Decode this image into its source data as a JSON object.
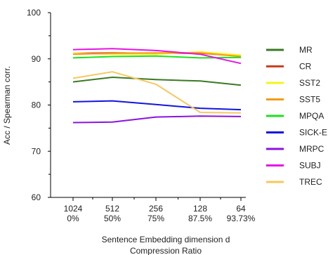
{
  "chart_data": {
    "type": "line",
    "x_labels": [
      [
        "1024",
        "0%"
      ],
      [
        "512",
        "50%"
      ],
      [
        "256",
        "75%"
      ],
      [
        "128",
        "87.5%"
      ],
      [
        "64",
        "93.73%"
      ]
    ],
    "xlabel": [
      "Sentence Embedding dimension d",
      "Compression Ratio"
    ],
    "ylabel": "Acc / Spearman corr.",
    "ylim": [
      60,
      100
    ],
    "yticks": [
      60,
      70,
      80,
      90,
      100
    ],
    "grid": false,
    "legend_position": "right",
    "series": [
      {
        "name": "MR",
        "color": "#3a7a24",
        "values": [
          85.0,
          86.0,
          85.5,
          85.2,
          84.3
        ]
      },
      {
        "name": "CR",
        "color": "#cc4122",
        "values": [
          91.2,
          91.3,
          91.2,
          91.2,
          90.6
        ]
      },
      {
        "name": "SST2",
        "color": "#f5f51a",
        "values": [
          91.2,
          91.0,
          91.0,
          91.5,
          90.8
        ]
      },
      {
        "name": "SST5",
        "color": "#f59a1a",
        "values": [
          91.0,
          91.2,
          91.3,
          91.3,
          90.5
        ]
      },
      {
        "name": "MPQA",
        "color": "#1ee01e",
        "values": [
          90.2,
          90.5,
          90.6,
          90.2,
          90.3
        ]
      },
      {
        "name": "SICK-E",
        "color": "#1414e0",
        "values": [
          80.7,
          80.9,
          80.1,
          79.3,
          79.0
        ]
      },
      {
        "name": "MRPC",
        "color": "#8a14e0",
        "values": [
          76.2,
          76.3,
          77.4,
          77.6,
          77.5
        ]
      },
      {
        "name": "SUBJ",
        "color": "#e614e6",
        "values": [
          92.0,
          92.2,
          91.8,
          91.0,
          89.0
        ]
      },
      {
        "name": "TREC",
        "color": "#f5c860",
        "values": [
          85.8,
          87.2,
          84.5,
          78.4,
          78.3
        ]
      }
    ]
  }
}
